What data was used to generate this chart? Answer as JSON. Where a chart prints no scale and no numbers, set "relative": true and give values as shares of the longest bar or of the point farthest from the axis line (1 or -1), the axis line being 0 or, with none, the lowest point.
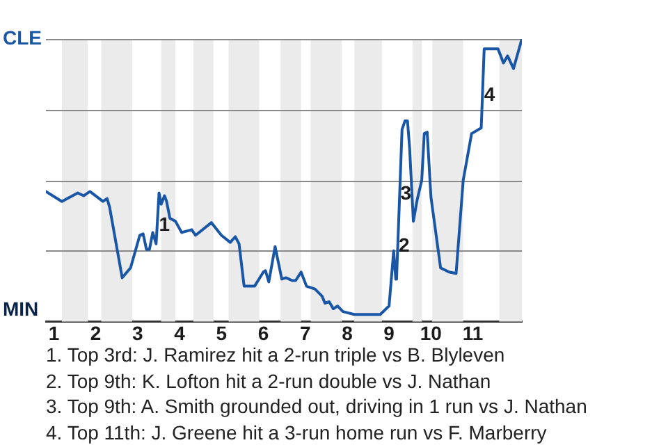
{
  "chart_data": {
    "type": "line",
    "color": "#1a56a6",
    "relative": true,
    "x": [
      0.81,
      1.19,
      1.57,
      1.71,
      1.86,
      2.17,
      2.27,
      2.33,
      2.63,
      2.83,
      3.05,
      3.13,
      3.21,
      3.28,
      3.36,
      3.44,
      3.51,
      3.56,
      3.64,
      3.69,
      3.77,
      3.9,
      4.05,
      4.29,
      4.38,
      4.76,
      5,
      5.21,
      5.33,
      5.42,
      5.54,
      5.79,
      6,
      6.05,
      6.13,
      6.28,
      6.44,
      6.54,
      6.69,
      6.77,
      6.9,
      7.03,
      7.23,
      7.4,
      7.47,
      7.57,
      7.67,
      7.77,
      7.9,
      8.17,
      8.46,
      8.79,
      9,
      9.11,
      9.16,
      9.18,
      9.31,
      9.38,
      9.44,
      9.49,
      9.58,
      9.67,
      9.78,
      9.84,
      9.91,
      10,
      10.23,
      10.43,
      10.6,
      10.77,
      10.97,
      11.2,
      11.27,
      11.6,
      11.73,
      11.83,
      11.97,
      12.17
    ],
    "values": [
      0.46,
      0.425,
      0.455,
      0.445,
      0.46,
      0.425,
      0.435,
      0.405,
      0.155,
      0.19,
      0.305,
      0.31,
      0.255,
      0.255,
      0.315,
      0.275,
      0.455,
      0.415,
      0.445,
      0.425,
      0.365,
      0.355,
      0.315,
      0.325,
      0.305,
      0.35,
      0.305,
      0.28,
      0.3,
      0.275,
      0.125,
      0.125,
      0.175,
      0.18,
      0.14,
      0.265,
      0.15,
      0.155,
      0.145,
      0.145,
      0.175,
      0.125,
      0.115,
      0.09,
      0.065,
      0.07,
      0.045,
      0.055,
      0.035,
      0.025,
      0.025,
      0.025,
      0.055,
      0.25,
      0.15,
      0.155,
      0.68,
      0.71,
      0.71,
      0.615,
      0.355,
      0.43,
      0.5,
      0.665,
      0.67,
      0.44,
      0.19,
      0.175,
      0.17,
      0.5,
      0.665,
      0.685,
      0.965,
      0.965,
      0.915,
      0.94,
      0.895,
      1
    ],
    "xlim": [
      0.81,
      12.17
    ],
    "xticks": [
      1,
      2,
      3,
      4,
      5,
      6,
      7,
      8,
      9,
      10,
      11
    ],
    "grid": "y",
    "legend": false,
    "marker": "none",
    "line_style": "solid",
    "bands": [
      {
        "axis": "x",
        "from": 1.19,
        "to": 1.81,
        "color": "#ebebeb"
      },
      {
        "axis": "x",
        "from": 2.13,
        "to": 2.87,
        "color": "#ebebeb"
      },
      {
        "axis": "x",
        "from": 3.56,
        "to": 3.9,
        "color": "#ebebeb"
      },
      {
        "axis": "x",
        "from": 4.33,
        "to": 4.81,
        "color": "#ebebeb"
      },
      {
        "axis": "x",
        "from": 5.17,
        "to": 5.9,
        "color": "#ebebeb"
      },
      {
        "axis": "x",
        "from": 6.41,
        "to": 6.9,
        "color": "#ebebeb"
      },
      {
        "axis": "x",
        "from": 7.13,
        "to": 7.87,
        "color": "#ebebeb"
      },
      {
        "axis": "x",
        "from": 8.17,
        "to": 8.83,
        "color": "#ebebeb"
      },
      {
        "axis": "x",
        "from": 9.56,
        "to": 9.78,
        "color": "#ebebeb"
      },
      {
        "axis": "x",
        "from": 10.03,
        "to": 10.77,
        "color": "#ebebeb"
      },
      {
        "axis": "x",
        "from": 11.63,
        "to": 12.17,
        "color": "#ebebeb"
      }
    ],
    "annotations": [
      "CLE",
      "MIN",
      {
        "text": "1",
        "x": 3.64,
        "y": 0.34
      },
      {
        "text": "2",
        "x": 9.36,
        "y": 0.265
      },
      {
        "text": "3",
        "x": 9.4,
        "y": 0.45
      },
      {
        "text": "4",
        "x": 11.4,
        "y": 0.8
      },
      "1. Top 3rd: J. Ramirez hit a 2-run triple vs B. Blyleven",
      "2. Top 9th: K. Lofton hit a 2-run double vs J. Nathan",
      "3. Top 9th: A. Smith grounded out, driving in 1 run vs J. Nathan",
      "4. Top 11th: J. Greene hit a 3-run home run vs F. Marberry"
    ]
  }
}
